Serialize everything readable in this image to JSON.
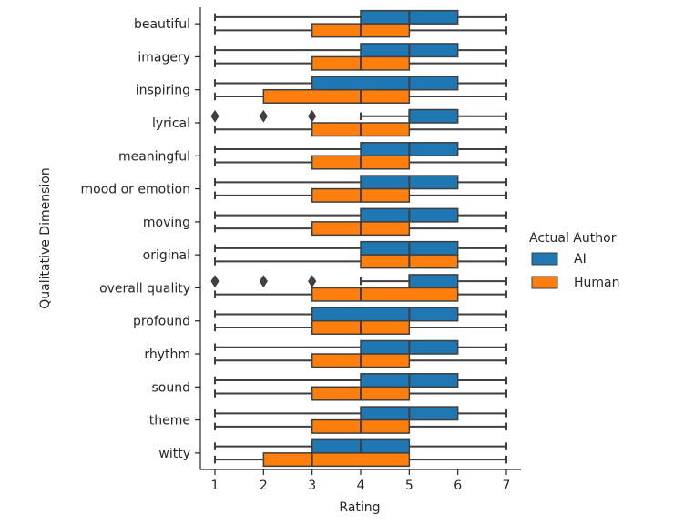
{
  "chart_data": {
    "type": "boxplot",
    "orientation": "horizontal",
    "title": "",
    "xlabel": "Rating",
    "ylabel": "Qualitative Dimension",
    "xlim": [
      0.7,
      7.3
    ],
    "xticks": [
      1,
      2,
      3,
      4,
      5,
      6,
      7
    ],
    "grid": false,
    "legend": {
      "title": "Actual Author",
      "placement": "right"
    },
    "series": [
      {
        "name": "AI",
        "color": "#1f77b4"
      },
      {
        "name": "Human",
        "color": "#ff7f0e"
      }
    ],
    "categories": [
      "beautiful",
      "imagery",
      "inspiring",
      "lyrical",
      "meaningful",
      "mood or emotion",
      "moving",
      "original",
      "overall quality",
      "profound",
      "rhythm",
      "sound",
      "theme",
      "witty"
    ],
    "boxes": {
      "AI": [
        {
          "whislo": 1,
          "q1": 4,
          "med": 5,
          "q3": 6,
          "whishi": 7,
          "fliers": []
        },
        {
          "whislo": 1,
          "q1": 4,
          "med": 5,
          "q3": 6,
          "whishi": 7,
          "fliers": []
        },
        {
          "whislo": 1,
          "q1": 3,
          "med": 5,
          "q3": 6,
          "whishi": 7,
          "fliers": []
        },
        {
          "whislo": 4,
          "q1": 5,
          "med": 5,
          "q3": 6,
          "whishi": 7,
          "fliers": [
            1,
            2,
            3
          ]
        },
        {
          "whislo": 1,
          "q1": 4,
          "med": 5,
          "q3": 6,
          "whishi": 7,
          "fliers": []
        },
        {
          "whislo": 1,
          "q1": 4,
          "med": 5,
          "q3": 6,
          "whishi": 7,
          "fliers": []
        },
        {
          "whislo": 1,
          "q1": 4,
          "med": 5,
          "q3": 6,
          "whishi": 7,
          "fliers": []
        },
        {
          "whislo": 1,
          "q1": 4,
          "med": 5,
          "q3": 6,
          "whishi": 7,
          "fliers": []
        },
        {
          "whislo": 4,
          "q1": 5,
          "med": 5,
          "q3": 6,
          "whishi": 7,
          "fliers": [
            1,
            2,
            3
          ]
        },
        {
          "whislo": 1,
          "q1": 3,
          "med": 5,
          "q3": 6,
          "whishi": 7,
          "fliers": []
        },
        {
          "whislo": 1,
          "q1": 4,
          "med": 5,
          "q3": 6,
          "whishi": 7,
          "fliers": []
        },
        {
          "whislo": 1,
          "q1": 4,
          "med": 5,
          "q3": 6,
          "whishi": 7,
          "fliers": []
        },
        {
          "whislo": 1,
          "q1": 4,
          "med": 5,
          "q3": 6,
          "whishi": 7,
          "fliers": []
        },
        {
          "whislo": 1,
          "q1": 3,
          "med": 4,
          "q3": 5,
          "whishi": 7,
          "fliers": []
        }
      ],
      "Human": [
        {
          "whislo": 1,
          "q1": 3,
          "med": 4,
          "q3": 5,
          "whishi": 7,
          "fliers": []
        },
        {
          "whislo": 1,
          "q1": 3,
          "med": 4,
          "q3": 5,
          "whishi": 7,
          "fliers": []
        },
        {
          "whislo": 1,
          "q1": 2,
          "med": 4,
          "q3": 5,
          "whishi": 7,
          "fliers": []
        },
        {
          "whislo": 1,
          "q1": 3,
          "med": 4,
          "q3": 5,
          "whishi": 7,
          "fliers": []
        },
        {
          "whislo": 1,
          "q1": 3,
          "med": 4,
          "q3": 5,
          "whishi": 7,
          "fliers": []
        },
        {
          "whislo": 1,
          "q1": 3,
          "med": 4,
          "q3": 5,
          "whishi": 7,
          "fliers": []
        },
        {
          "whislo": 1,
          "q1": 3,
          "med": 4,
          "q3": 5,
          "whishi": 7,
          "fliers": []
        },
        {
          "whislo": 1,
          "q1": 4,
          "med": 5,
          "q3": 6,
          "whishi": 7,
          "fliers": []
        },
        {
          "whislo": 1,
          "q1": 3,
          "med": 4,
          "q3": 6,
          "whishi": 7,
          "fliers": []
        },
        {
          "whislo": 1,
          "q1": 3,
          "med": 4,
          "q3": 5,
          "whishi": 7,
          "fliers": []
        },
        {
          "whislo": 1,
          "q1": 3,
          "med": 4,
          "q3": 5,
          "whishi": 7,
          "fliers": []
        },
        {
          "whislo": 1,
          "q1": 3,
          "med": 4,
          "q3": 5,
          "whishi": 7,
          "fliers": []
        },
        {
          "whislo": 1,
          "q1": 3,
          "med": 4,
          "q3": 5,
          "whishi": 7,
          "fliers": []
        },
        {
          "whislo": 1,
          "q1": 2,
          "med": 3,
          "q3": 5,
          "whishi": 7,
          "fliers": []
        }
      ]
    }
  }
}
